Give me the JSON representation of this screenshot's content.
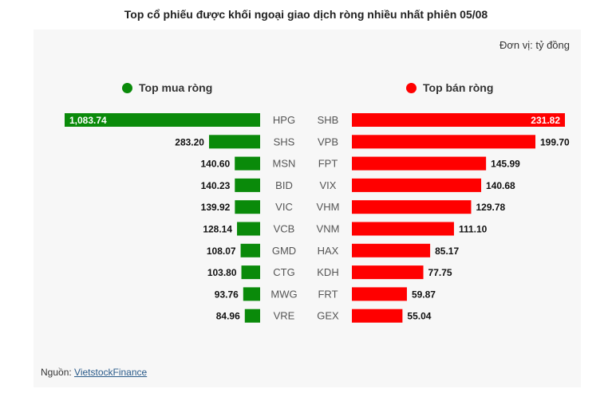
{
  "title": "Top cổ phiếu được khối ngoại giao dịch ròng nhiều nhất phiên 05/08",
  "unit": "Đơn vị: tỷ đồng",
  "legend": {
    "buy": {
      "label": "Top mua ròng",
      "color": "#0a8a0a"
    },
    "sell": {
      "label": "Top bán ròng",
      "color": "#ff0000"
    }
  },
  "source": {
    "prefix": "Nguồn: ",
    "link": "VietstockFinance"
  },
  "chart_data": [
    {
      "type": "bar",
      "name": "Top mua ròng",
      "categories": [
        "HPG",
        "SHS",
        "MSN",
        "BID",
        "VIC",
        "VCB",
        "GMD",
        "CTG",
        "MWG",
        "VRE"
      ],
      "values": [
        1083.74,
        283.2,
        140.6,
        140.23,
        139.92,
        128.14,
        108.07,
        103.8,
        93.76,
        84.96
      ],
      "labels": [
        "1,083.74",
        "283.20",
        "140.60",
        "140.23",
        "139.92",
        "128.14",
        "108.07",
        "103.80",
        "93.76",
        "84.96"
      ]
    },
    {
      "type": "bar",
      "name": "Top bán ròng",
      "categories": [
        "SHB",
        "VPB",
        "FPT",
        "VIX",
        "VHM",
        "VNM",
        "HAX",
        "KDH",
        "FRT",
        "GEX"
      ],
      "values": [
        231.82,
        199.7,
        145.99,
        140.68,
        129.78,
        111.1,
        85.17,
        77.75,
        59.87,
        55.04
      ],
      "labels": [
        "231.82",
        "199.70",
        "145.99",
        "140.68",
        "129.78",
        "111.10",
        "85.17",
        "77.75",
        "59.87",
        "55.04"
      ]
    }
  ]
}
